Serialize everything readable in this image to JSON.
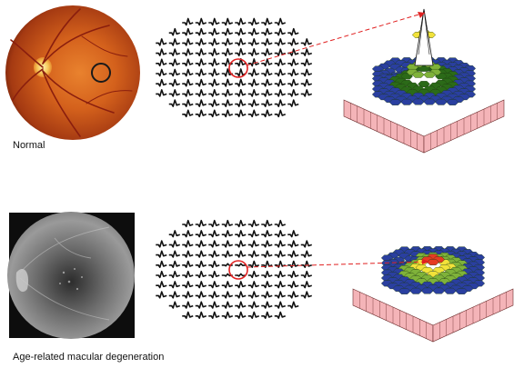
{
  "rows": [
    {
      "label": "Normal",
      "image_kind": "color-fundus-photograph",
      "trace_array": "multifocal-erg-trace-array",
      "topography": "3d-response-density-plot-with-central-peak"
    },
    {
      "label": "Age-related macular degeneration",
      "image_kind": "grayscale-fundus-angiogram",
      "trace_array": "multifocal-erg-trace-array",
      "topography": "3d-response-density-plot-with-flattened-peak"
    }
  ],
  "colors": {
    "highlight_circle": "#e02020",
    "arrow": "#e02020",
    "surface_low": "#2b6a18",
    "surface_mid": "#7fb23a",
    "surface_high": "#f2e23a",
    "surface_peak": "#e53a22",
    "depression": "#2a3fa0",
    "base_sides": "#f4b4b8"
  }
}
